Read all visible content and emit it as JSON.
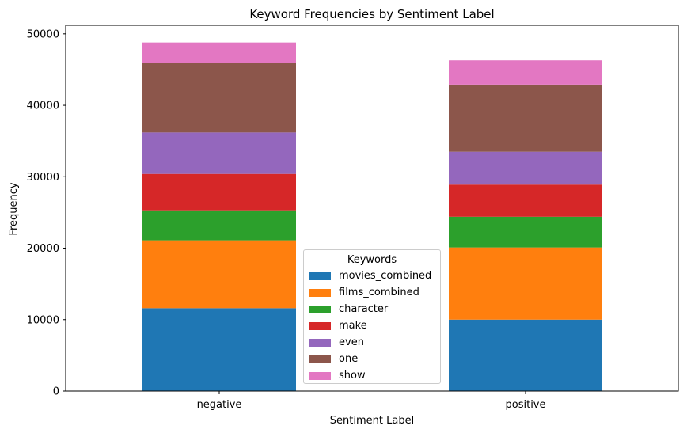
{
  "chart_data": {
    "type": "bar",
    "stacked": true,
    "title": "Keyword Frequencies by Sentiment Label",
    "xlabel": "Sentiment Label",
    "ylabel": "Frequency",
    "categories": [
      "negative",
      "positive"
    ],
    "ylim": [
      0,
      51200
    ],
    "yticks": [
      0,
      10000,
      20000,
      30000,
      40000,
      50000
    ],
    "grid": false,
    "legend": {
      "title": "Keywords",
      "placement": "lower-center"
    },
    "series": [
      {
        "name": "movies_combined",
        "color": "#1f77b4",
        "values": [
          11600,
          10000
        ]
      },
      {
        "name": "films_combined",
        "color": "#ff7f0e",
        "values": [
          9500,
          10100
        ]
      },
      {
        "name": "character",
        "color": "#2ca02c",
        "values": [
          4200,
          4300
        ]
      },
      {
        "name": "make",
        "color": "#d62728",
        "values": [
          5100,
          4500
        ]
      },
      {
        "name": "even",
        "color": "#9467bd",
        "values": [
          5800,
          4600
        ]
      },
      {
        "name": "one",
        "color": "#8c564b",
        "values": [
          9700,
          9400
        ]
      },
      {
        "name": "show",
        "color": "#e377c2",
        "values": [
          2900,
          3400
        ]
      }
    ]
  }
}
